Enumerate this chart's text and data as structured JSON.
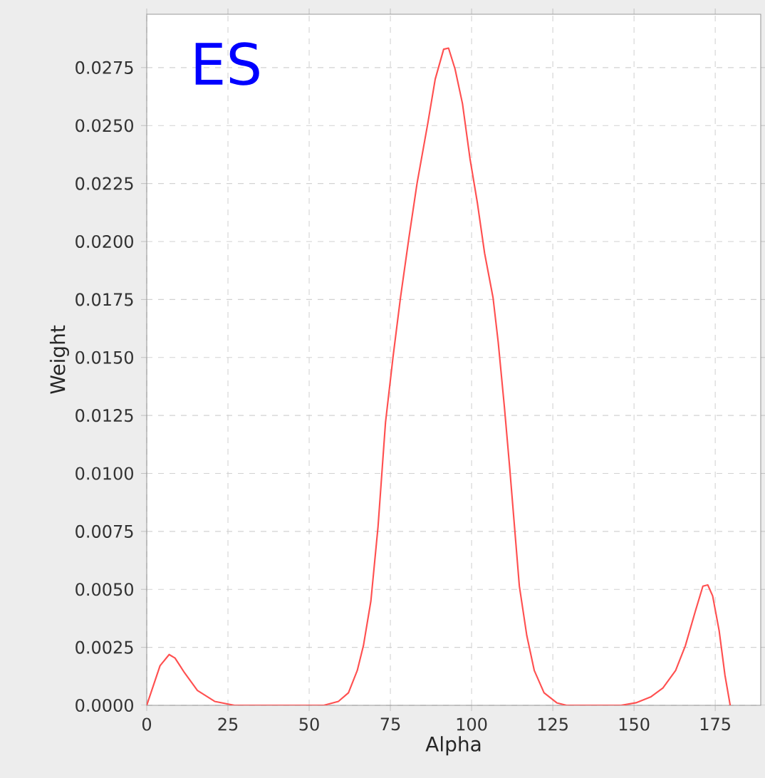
{
  "chart_data": {
    "type": "line",
    "xlabel": "Alpha",
    "ylabel": "Weight",
    "annotations": [
      "ES"
    ],
    "xlim": [
      0,
      189
    ],
    "ylim": [
      0,
      0.0298
    ],
    "xticks": [
      0,
      25,
      50,
      75,
      100,
      125,
      150,
      175
    ],
    "yticks": [
      {
        "value": 0,
        "label": "0.0000"
      },
      0.0025,
      {
        "value": 0.005,
        "label": "0.0050"
      },
      0.0075,
      {
        "value": 0.01,
        "label": "0.0100"
      },
      0.0125,
      {
        "value": 0.015,
        "label": "0.0150"
      },
      0.0175,
      {
        "value": 0.02,
        "label": "0.0200"
      },
      0.0225,
      {
        "value": 0.025,
        "label": "0.0250"
      },
      0.0275
    ],
    "grid": true,
    "series": [
      {
        "color": "#ff5050",
        "x": [
          0,
          4.1,
          6.9,
          8.7,
          11.7,
          15.6,
          20.9,
          27,
          54.5,
          59,
          62.1,
          64.8,
          66.7,
          69,
          71.2,
          73.5,
          75.8,
          78.1,
          80.7,
          83.2,
          86.5,
          88.8,
          91.4,
          92.9,
          94.9,
          97.2,
          99.5,
          101.8,
          104.0,
          106.6,
          108.2,
          110.1,
          111.7,
          113.2,
          114.7,
          117,
          119.3,
          122.3,
          126.2,
          129.2,
          146,
          150.6,
          155.1,
          158.9,
          162.8,
          165.8,
          168.9,
          171.2,
          172.7,
          174.2,
          176.2,
          178,
          179.6
        ],
        "values": [
          0,
          0.00171,
          0.00219,
          0.00204,
          0.00139,
          0.00064,
          0.00017,
          0,
          0,
          0.00017,
          0.00054,
          0.0015,
          0.00257,
          0.0045,
          0.0077,
          0.0122,
          0.015,
          0.01757,
          0.02015,
          0.0225,
          0.02508,
          0.027,
          0.02829,
          0.02834,
          0.02744,
          0.02594,
          0.02358,
          0.02165,
          0.0195,
          0.01758,
          0.01565,
          0.01286,
          0.01029,
          0.00772,
          0.00514,
          0.003,
          0.0015,
          0.00054,
          0.00011,
          0,
          0,
          0.00011,
          0.00036,
          0.00075,
          0.0015,
          0.00257,
          0.00407,
          0.00514,
          0.00519,
          0.00472,
          0.00322,
          0.00129,
          0
        ]
      }
    ]
  }
}
